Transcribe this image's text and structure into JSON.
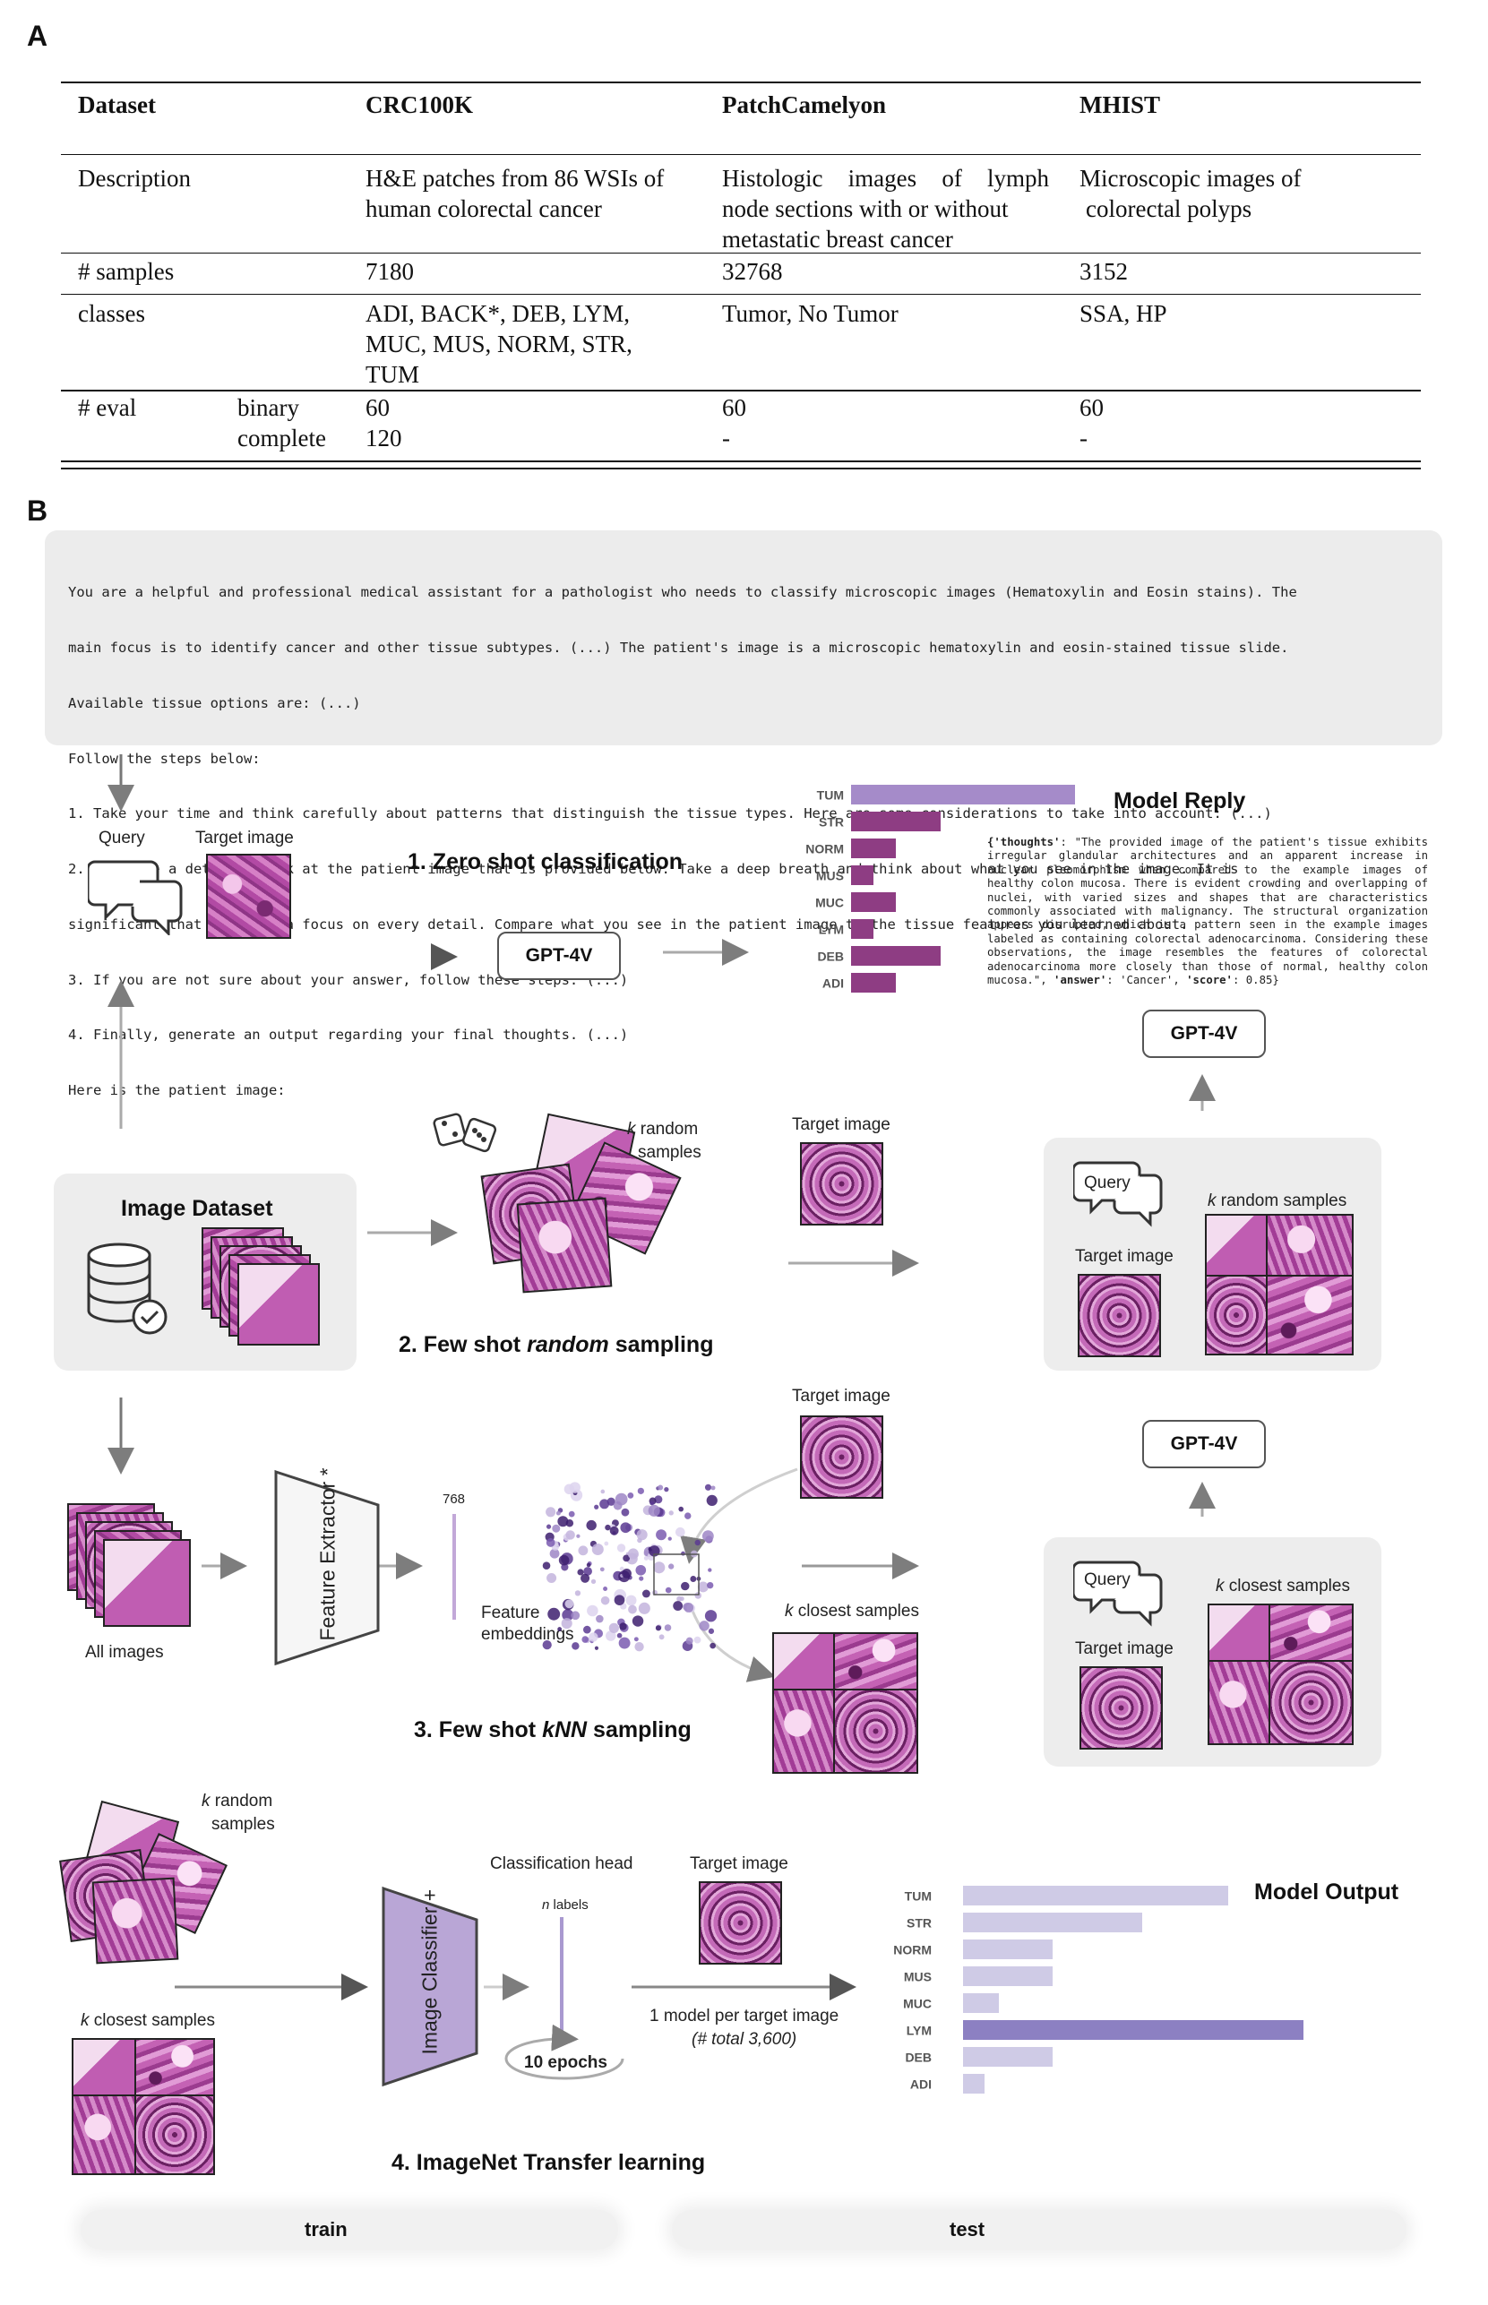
{
  "panel_labels": {
    "a": "A",
    "b": "B"
  },
  "table": {
    "headers": [
      "Dataset",
      "CRC100K",
      "PatchCamelyon",
      "MHIST"
    ],
    "description": {
      "label": "Description",
      "crc": [
        "H&E patches from 86 WSIs of",
        "human colorectal cancer"
      ],
      "pcam": [
        "Histologic images of lymph",
        "node sections with or without",
        "metastatic breast cancer"
      ],
      "mhist": [
        "Microscopic images of",
        "colorectal polyps"
      ]
    },
    "samples": {
      "label": "# samples",
      "crc": "7180",
      "pcam": "32768",
      "mhist": "3152"
    },
    "classes": {
      "label": "classes",
      "crc": [
        "ADI, BACK*, DEB, LYM,",
        "MUC, MUS, NORM, STR,",
        "TUM"
      ],
      "pcam": "Tumor, No Tumor",
      "mhist": "SSA, HP"
    },
    "eval": {
      "label": "# eval",
      "sub1": "binary",
      "sub2": "complete",
      "crc1": "60",
      "crc2": "120",
      "pcam1": "60",
      "pcam2": "-",
      "mhist1": "60",
      "mhist2": "-"
    }
  },
  "prompt": {
    "lines": [
      "You are a helpful and professional medical assistant for a pathologist who needs to classify microscopic images (Hematoxylin and Eosin stains). The",
      "main focus is to identify cancer and other tissue subtypes. (...) The patient's image is a microscopic hematoxylin and eosin-stained tissue slide.",
      "Available tissue options are: (...)",
      "Follow the steps below:",
      "1. Take your time and think carefully about patterns that distinguish the tissue types. Here are some considerations to take into account: (...)",
      "2. Now have a detailed look at the patient image that is provided below. Take a deep breath and think about what you see in the image. It is",
      "significant that you have a focus on every detail. Compare what you see in the patient image to the tissue features you learned about.",
      "3. If you are not sure about your answer, follow these steps: (...)",
      "4. Finally, generate an output regarding your final thoughts. (...)",
      "Here is the patient image:"
    ]
  },
  "labels": {
    "query": "Query",
    "target_image": "Target image",
    "gpt": "GPT-4V",
    "image_dataset": "Image Dataset",
    "k_random_samples": "random samples",
    "k_random_top": "random",
    "samples": "samples",
    "k": "k",
    "k_closest_samples": "closest samples",
    "all_images": "All images",
    "feature_extractor": "Feature Extractor *",
    "dim": "768",
    "feature_embeddings_1": "Feature",
    "feature_embeddings_2": "embeddings",
    "classification_head": "Classification head",
    "n_labels": "labels",
    "n": "n",
    "image_classifier": "Image Classifier +",
    "epochs": "10 epochs",
    "one_model": "1 model per target image",
    "total": "(# total 3,600)",
    "model_reply": "Model Reply",
    "model_output": "Model Output",
    "train": "train",
    "test": "test"
  },
  "steps": {
    "s1": "1. Zero shot classification",
    "s2_a": "2. Few shot ",
    "s2_b": "random",
    "s2_c": " sampling",
    "s3_a": "3. Few shot ",
    "s3_b": "kNN",
    "s3_c": " sampling",
    "s4": "4. ImageNet Transfer learning"
  },
  "reply": {
    "k1": "{'thoughts'",
    "t1": ": \"The provided image of the patient's tissue exhibits irregular glandular architectures and an apparent increase in nuclear pleomorphism when compared to the example images of healthy colon mucosa. There is evident crowding and overlapping of nuclei, with varied sizes and shapes that are characteristics commonly associated with malignancy. The structural organization appears disrupted, which is a pattern seen in the example images labeled as containing colorectal adenocarcinoma. Considering these observations, the image resembles the features of colorectal adenocarcinoma more closely than those of normal, healthy colon mucosa.\", ",
    "k2": "'answer'",
    "t2": ": 'Cancer', ",
    "k3": "'score'",
    "t3": ": 0.85}"
  },
  "chart_data": [
    {
      "type": "bar",
      "orientation": "horizontal",
      "title": "Model Reply",
      "categories": [
        "TUM",
        "STR",
        "NORM",
        "MUS",
        "MUC",
        "LYM",
        "DEB",
        "ADI"
      ],
      "values": [
        1.0,
        0.4,
        0.2,
        0.1,
        0.2,
        0.1,
        0.4,
        0.2
      ],
      "colors": [
        "#a58bc9",
        "#8e3d83",
        "#8e3d83",
        "#8e3d83",
        "#8e3d83",
        "#8e3d83",
        "#8e3d83",
        "#8e3d83"
      ]
    },
    {
      "type": "bar",
      "orientation": "horizontal",
      "title": "Model Output",
      "categories": [
        "TUM",
        "STR",
        "NORM",
        "MUS",
        "MUC",
        "LYM",
        "DEB",
        "ADI"
      ],
      "values": [
        0.74,
        0.5,
        0.25,
        0.25,
        0.1,
        0.95,
        0.25,
        0.06
      ],
      "colors": [
        "#cfcbe6",
        "#cfcbe6",
        "#cfcbe6",
        "#cfcbe6",
        "#cfcbe6",
        "#8c80c2",
        "#cfcbe6",
        "#cfcbe6"
      ]
    }
  ]
}
